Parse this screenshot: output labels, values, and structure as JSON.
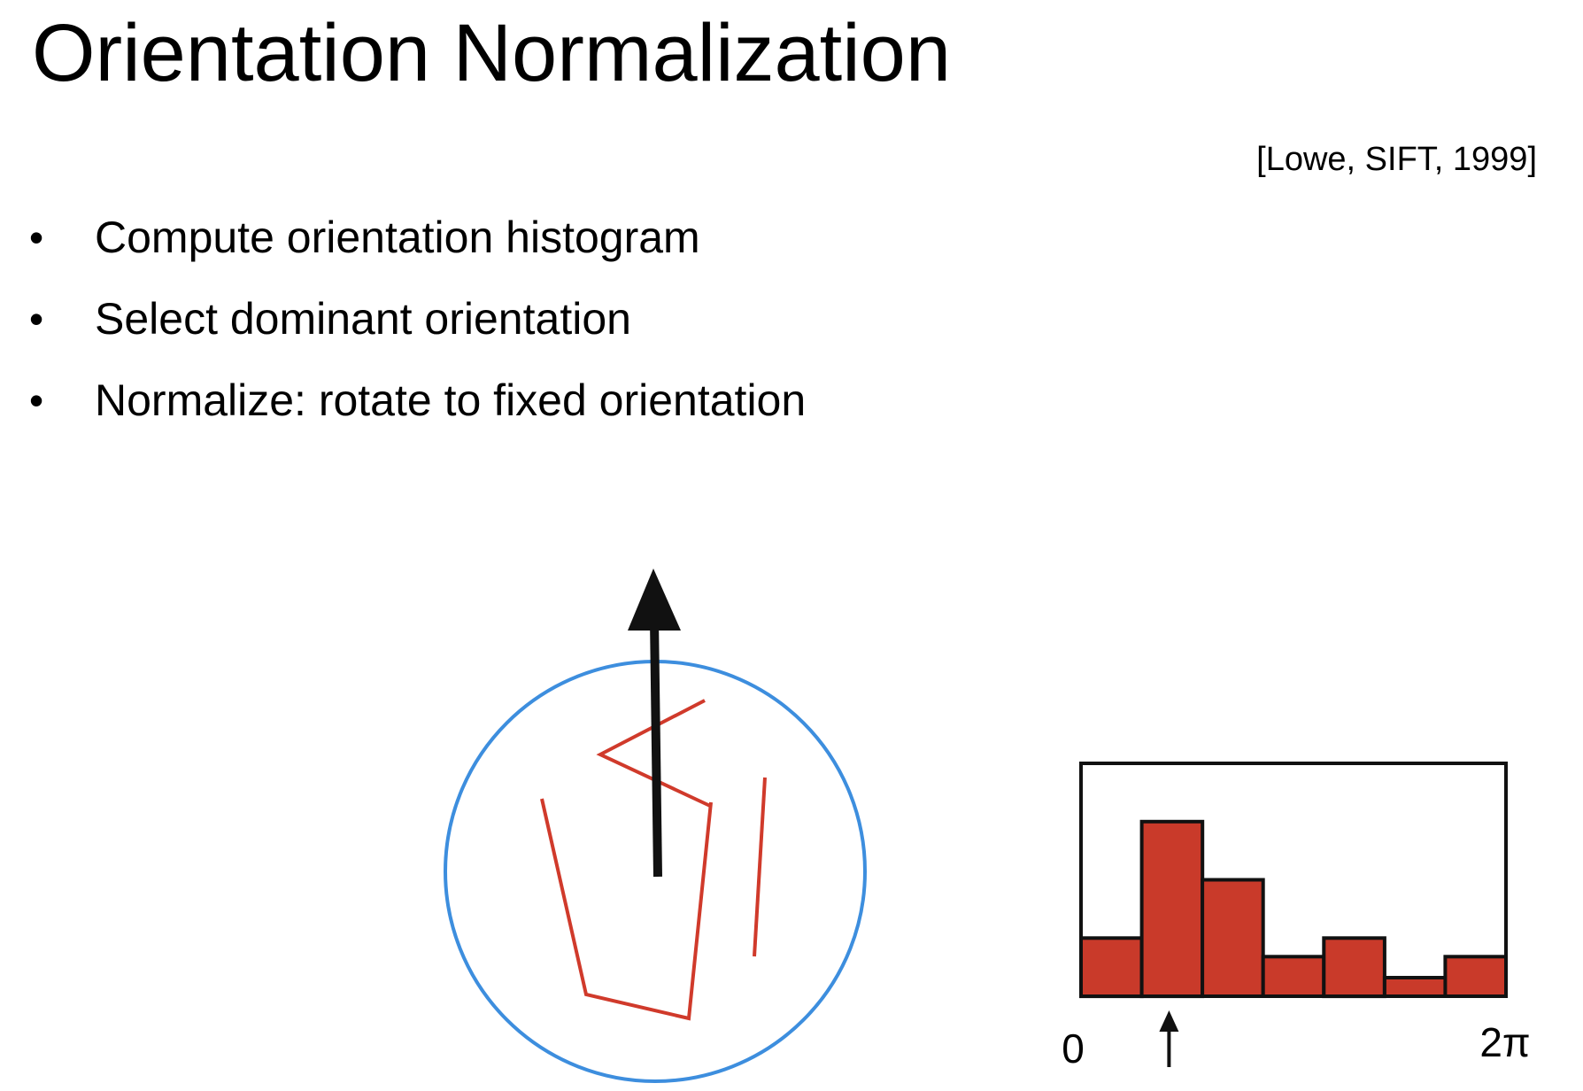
{
  "slide": {
    "title": "Orientation Normalization",
    "citation": "[Lowe, SIFT, 1999]",
    "bullets": [
      "Compute orientation histogram",
      "Select dominant orientation",
      "Normalize: rotate to fixed orientation"
    ]
  },
  "colors": {
    "circle": "#3d8ede",
    "edges": "#d03a2b",
    "arrow": "#111111",
    "bars": "#c93a2a",
    "outline": "#111111"
  },
  "chart_data": {
    "type": "bar",
    "title": "",
    "xlabel": "",
    "ylabel": "",
    "x_tick_labels": [
      "0",
      "2π"
    ],
    "bins": 7,
    "values": [
      0.25,
      0.75,
      0.5,
      0.17,
      0.25,
      0.08,
      0.17
    ],
    "ylim": [
      0,
      1
    ],
    "dominant_bin": 1,
    "grid": false,
    "legend": "none"
  }
}
